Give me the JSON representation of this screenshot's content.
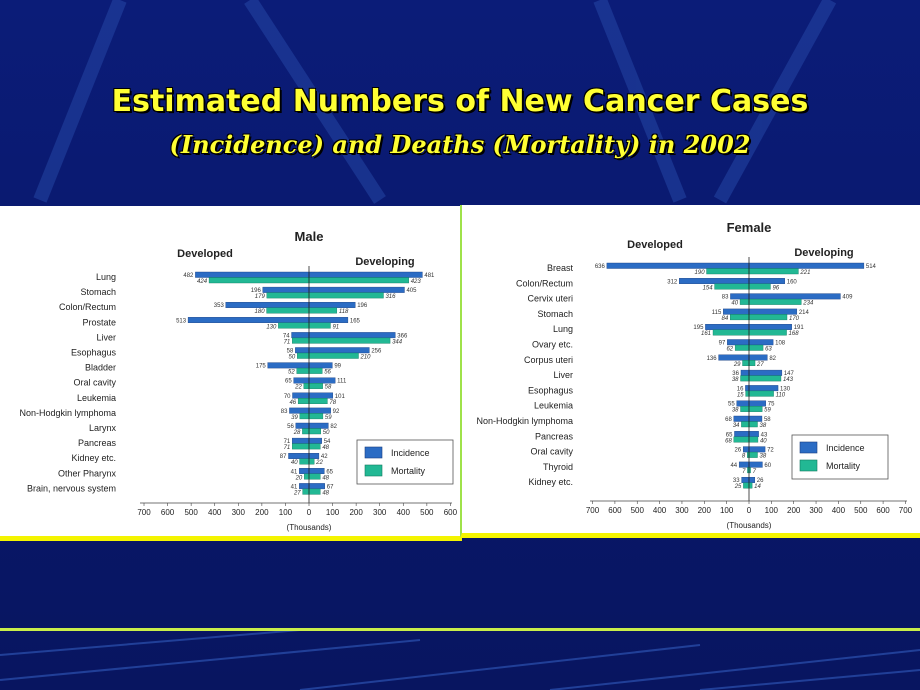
{
  "slide": {
    "title": "Estimated Numbers of New Cancer Cases",
    "subtitle": "(Incidence) and Deaths (Mortality) in 2002"
  },
  "colors": {
    "incidence": "#2b6cc4",
    "mortality": "#22b894",
    "background": "#0a1a72",
    "title": "#ffff33"
  },
  "chart_data": [
    {
      "type": "bar",
      "title": "Male",
      "left_label": "Developed",
      "right_label": "Developing",
      "xlabel": "(Thousands)",
      "ticks": [
        "700",
        "600",
        "500",
        "400",
        "300",
        "200",
        "100",
        "0",
        "100",
        "200",
        "300",
        "400",
        "500",
        "600"
      ],
      "legend": {
        "incidence": "Incidence",
        "mortality": "Mortality"
      },
      "categories": [
        "Lung",
        "Stomach",
        "Colon/Rectum",
        "Prostate",
        "Liver",
        "Esophagus",
        "Bladder",
        "Oral cavity",
        "Leukemia",
        "Non-Hodgkin lymphoma",
        "Larynx",
        "Pancreas",
        "Kidney etc.",
        "Other Pharynx",
        "Brain, nervous system"
      ],
      "series": [
        {
          "name": "Developed Incidence",
          "values": [
            482,
            196,
            353,
            513,
            74,
            58,
            175,
            65,
            70,
            83,
            56,
            71,
            87,
            41,
            41
          ]
        },
        {
          "name": "Developed Mortality",
          "values": [
            424,
            179,
            180,
            130,
            71,
            50,
            52,
            22,
            46,
            39,
            28,
            71,
            40,
            20,
            27
          ]
        },
        {
          "name": "Developing Incidence",
          "values": [
            481,
            405,
            196,
            165,
            366,
            256,
            99,
            111,
            101,
            92,
            82,
            54,
            42,
            65,
            67
          ]
        },
        {
          "name": "Developing Mortality",
          "values": [
            423,
            316,
            118,
            91,
            344,
            210,
            56,
            58,
            78,
            59,
            50,
            48,
            22,
            48,
            48
          ]
        }
      ]
    },
    {
      "type": "bar",
      "title": "Female",
      "left_label": "Developed",
      "right_label": "Developing",
      "xlabel": "(Thousands)",
      "ticks": [
        "700",
        "600",
        "500",
        "400",
        "300",
        "200",
        "100",
        "0",
        "100",
        "200",
        "300",
        "400",
        "500",
        "600",
        "700"
      ],
      "legend": {
        "incidence": "Incidence",
        "mortality": "Mortality"
      },
      "categories": [
        "Breast",
        "Colon/Rectum",
        "Cervix uteri",
        "Stomach",
        "Lung",
        "Ovary etc.",
        "Corpus uteri",
        "Liver",
        "Esophagus",
        "Leukemia",
        "Non-Hodgkin lymphoma",
        "Pancreas",
        "Oral cavity",
        "Thyroid",
        "Kidney etc."
      ],
      "series": [
        {
          "name": "Developed Incidence",
          "values": [
            636,
            312,
            83,
            115,
            195,
            97,
            136,
            36,
            16,
            55,
            68,
            65,
            26,
            44,
            33
          ]
        },
        {
          "name": "Developed Mortality",
          "values": [
            190,
            154,
            40,
            84,
            161,
            62,
            29,
            38,
            15,
            38,
            34,
            68,
            8,
            7,
            25
          ]
        },
        {
          "name": "Developing Incidence",
          "values": [
            514,
            160,
            409,
            214,
            191,
            108,
            82,
            147,
            130,
            75,
            58,
            43,
            72,
            60,
            26
          ]
        },
        {
          "name": "Developing Mortality",
          "values": [
            221,
            96,
            234,
            170,
            168,
            63,
            27,
            143,
            110,
            59,
            38,
            40,
            38,
            7,
            14
          ]
        }
      ]
    }
  ]
}
